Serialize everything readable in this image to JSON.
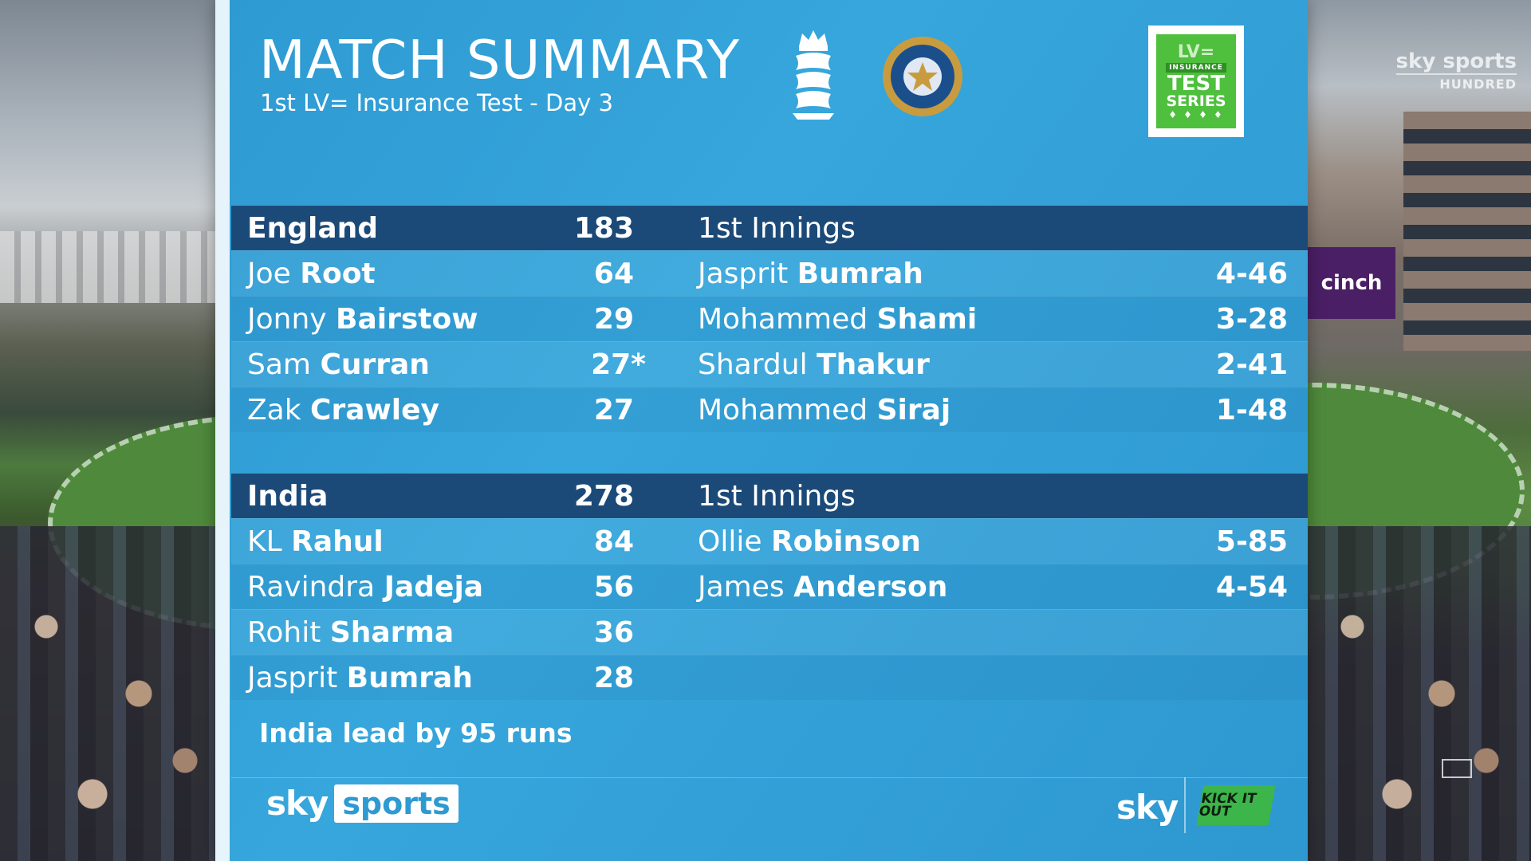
{
  "title": "MATCH SUMMARY",
  "subtitle": "1st LV= Insurance Test - Day 3",
  "sponsor_logo": {
    "mark": "LV=",
    "insurance": "INSURANCE",
    "test": "TEST",
    "series": "SERIES"
  },
  "innings": [
    {
      "team": "England",
      "total": "183",
      "bowling_header": "1st Innings",
      "batting": [
        {
          "first": "Joe",
          "last": "Root",
          "score": "64"
        },
        {
          "first": "Jonny",
          "last": "Bairstow",
          "score": "29"
        },
        {
          "first": "Sam",
          "last": "Curran",
          "score": "27*"
        },
        {
          "first": "Zak",
          "last": "Crawley",
          "score": "27"
        }
      ],
      "bowling": [
        {
          "first": "Jasprit",
          "last": "Bumrah",
          "figures": "4-46"
        },
        {
          "first": "Mohammed",
          "last": "Shami",
          "figures": "3-28"
        },
        {
          "first": "Shardul",
          "last": "Thakur",
          "figures": "2-41"
        },
        {
          "first": "Mohammed",
          "last": "Siraj",
          "figures": "1-48"
        }
      ]
    },
    {
      "team": "India",
      "total": "278",
      "bowling_header": "1st Innings",
      "batting": [
        {
          "first": "KL",
          "last": "Rahul",
          "score": "84"
        },
        {
          "first": "Ravindra",
          "last": "Jadeja",
          "score": "56"
        },
        {
          "first": "Rohit",
          "last": "Sharma",
          "score": "36"
        },
        {
          "first": "Jasprit",
          "last": "Bumrah",
          "score": "28"
        }
      ],
      "bowling": [
        {
          "first": "Ollie",
          "last": "Robinson",
          "figures": "5-85"
        },
        {
          "first": "James",
          "last": "Anderson",
          "figures": "4-54"
        }
      ]
    }
  ],
  "lead_text": "India lead by 95 runs",
  "footer": {
    "sky": "sky",
    "sports": "sports",
    "sky_right": "sky",
    "kick_it_out": "KICK IT OUT"
  },
  "bug": {
    "channel": "sky sports",
    "sub": "HUNDRED"
  },
  "background_sign": "cinch",
  "icons": [
    "england-crest-icon",
    "india-crest-icon",
    "screen-icon"
  ]
}
